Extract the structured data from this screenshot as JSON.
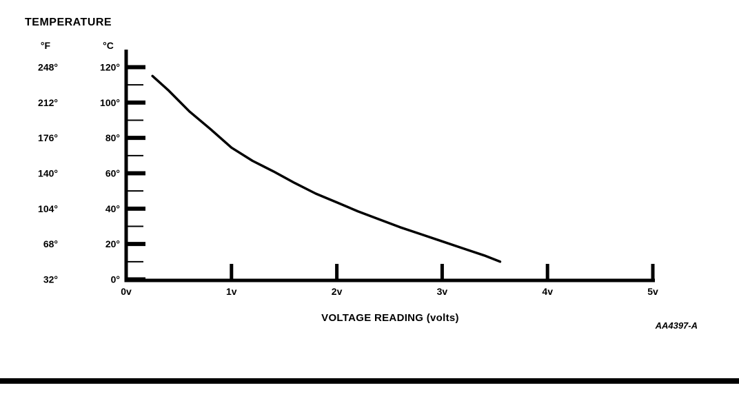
{
  "page": {
    "background_color": "#ffffff",
    "ink_color": "#000000"
  },
  "figure": {
    "title": "TEMPERATURE",
    "fahrenheit_header": "°F",
    "celsius_header": "°C",
    "x_axis_title": "VOLTAGE READING (volts)",
    "figure_code": "AA4397-A",
    "x_tick_labels": [
      "0v",
      "1v",
      "2v",
      "3v",
      "4v",
      "5v"
    ],
    "y_rows_top_to_bottom": [
      {
        "fahrenheit_label": "248°",
        "celsius_label": "120°",
        "celsius_value": 120
      },
      {
        "fahrenheit_label": "212°",
        "celsius_label": "100°",
        "celsius_value": 100
      },
      {
        "fahrenheit_label": "176°",
        "celsius_label": "80°",
        "celsius_value": 80
      },
      {
        "fahrenheit_label": "140°",
        "celsius_label": "60°",
        "celsius_value": 60
      },
      {
        "fahrenheit_label": "104°",
        "celsius_label": "40°",
        "celsius_value": 40
      },
      {
        "fahrenheit_label": "68°",
        "celsius_label": "20°",
        "celsius_value": 20
      },
      {
        "fahrenheit_label": "32°",
        "celsius_label": "0°",
        "celsius_value": 0
      }
    ]
  },
  "chart_data": {
    "type": "line",
    "title": "TEMPERATURE vs VOLTAGE READING",
    "xlabel": "VOLTAGE READING (volts)",
    "ylabel": "TEMPERATURE (°C primary scale, °F secondary scale)",
    "xlim": [
      0,
      5
    ],
    "ylim": [
      0,
      120
    ],
    "x_unit": "volts",
    "y_unit_primary": "°C",
    "y_unit_secondary": "°F",
    "x_ticks": [
      0,
      1,
      2,
      3,
      4,
      5
    ],
    "y_ticks_celsius": [
      0,
      20,
      40,
      60,
      80,
      100,
      120
    ],
    "y_ticks_fahrenheit": [
      32,
      68,
      104,
      140,
      176,
      212,
      248
    ],
    "y_minor_ticks_celsius": [
      10,
      30,
      50,
      70,
      90,
      110
    ],
    "grid": false,
    "legend": "none",
    "series": [
      {
        "name": "temperature_vs_voltage_curve",
        "points_volts_celsius": [
          [
            0.25,
            115
          ],
          [
            0.4,
            107
          ],
          [
            0.6,
            95
          ],
          [
            0.8,
            85
          ],
          [
            1.0,
            74.5
          ],
          [
            1.2,
            67
          ],
          [
            1.4,
            61
          ],
          [
            1.6,
            54.5
          ],
          [
            1.8,
            48.5
          ],
          [
            2.0,
            43.5
          ],
          [
            2.2,
            38.5
          ],
          [
            2.4,
            34
          ],
          [
            2.6,
            29.5
          ],
          [
            2.8,
            25.5
          ],
          [
            3.0,
            21.5
          ],
          [
            3.2,
            17.5
          ],
          [
            3.4,
            13.5
          ],
          [
            3.55,
            10
          ]
        ]
      }
    ]
  }
}
